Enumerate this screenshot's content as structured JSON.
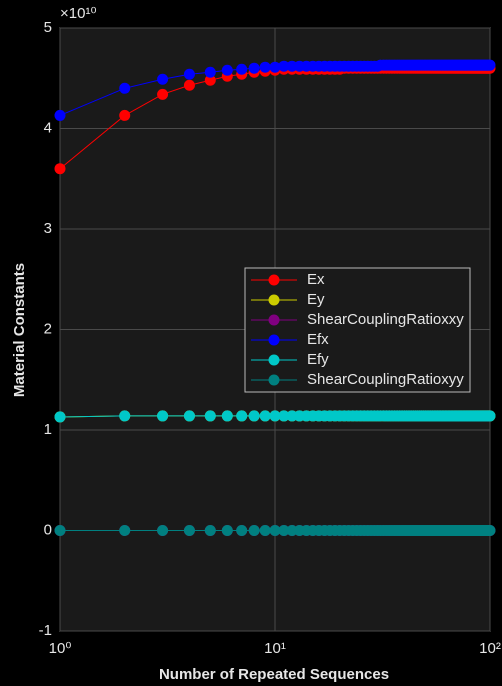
{
  "chart_data": {
    "type": "line",
    "xlabel": "Number of Repeated Sequences",
    "ylabel": "Material Constants",
    "y_exponent_label": "×10¹⁰",
    "x_scale": "log",
    "grid": true,
    "legend_position": "center-right",
    "xlim": [
      1,
      100
    ],
    "xticks": [
      {
        "value": 1,
        "label": "10⁰"
      },
      {
        "value": 10,
        "label": "10¹"
      },
      {
        "value": 100,
        "label": "10²"
      }
    ],
    "ylim": [
      -1,
      5
    ],
    "yticks": [
      -1,
      0,
      1,
      2,
      3,
      4,
      5
    ],
    "x": [
      1,
      2,
      3,
      4,
      5,
      6,
      7,
      8,
      9,
      10,
      11,
      12,
      13,
      14,
      15,
      16,
      17,
      18,
      19,
      20,
      21,
      22,
      23,
      24,
      25,
      26,
      27,
      28,
      29,
      30,
      31,
      32,
      33,
      34,
      35,
      36,
      37,
      38,
      39,
      40,
      41,
      42,
      43,
      44,
      45,
      46,
      47,
      48,
      49,
      50,
      51,
      52,
      53,
      54,
      55,
      56,
      57,
      58,
      59,
      60,
      61,
      62,
      63,
      64,
      65,
      66,
      67,
      68,
      69,
      70,
      71,
      72,
      73,
      74,
      75,
      76,
      77,
      78,
      79,
      80,
      81,
      82,
      83,
      84,
      85,
      86,
      87,
      88,
      89,
      90,
      91,
      92,
      93,
      94,
      95,
      96,
      97,
      98,
      99,
      100
    ],
    "series": [
      {
        "name": "Ex",
        "color": "#ff0000",
        "values": [
          3.6,
          4.13,
          4.34,
          4.43,
          4.48,
          4.52,
          4.54,
          4.56,
          4.57,
          4.58,
          4.59,
          4.59,
          4.59,
          4.59,
          4.59,
          4.59,
          4.59,
          4.59,
          4.59,
          4.59,
          4.6,
          4.6,
          4.6,
          4.6,
          4.6,
          4.6,
          4.6,
          4.6,
          4.6,
          4.6,
          4.6,
          4.6,
          4.6,
          4.6,
          4.6,
          4.6,
          4.6,
          4.6,
          4.6,
          4.6,
          4.6,
          4.6,
          4.6,
          4.6,
          4.6,
          4.6,
          4.6,
          4.6,
          4.6,
          4.6,
          4.6,
          4.6,
          4.6,
          4.6,
          4.6,
          4.6,
          4.6,
          4.6,
          4.6,
          4.6,
          4.6,
          4.6,
          4.6,
          4.6,
          4.6,
          4.6,
          4.6,
          4.6,
          4.6,
          4.6,
          4.6,
          4.6,
          4.6,
          4.6,
          4.6,
          4.6,
          4.6,
          4.6,
          4.6,
          4.6,
          4.6,
          4.6,
          4.6,
          4.6,
          4.6,
          4.6,
          4.6,
          4.6,
          4.6,
          4.6,
          4.6,
          4.6,
          4.6,
          4.6,
          4.6,
          4.6,
          4.6,
          4.6,
          4.6,
          4.6
        ]
      },
      {
        "name": "Ey",
        "color": "#cccc00",
        "values": [
          1.13,
          1.14,
          1.14,
          1.14,
          1.14,
          1.14,
          1.14,
          1.14,
          1.14,
          1.14,
          1.14,
          1.14,
          1.14,
          1.14,
          1.14,
          1.14,
          1.14,
          1.14,
          1.14,
          1.14,
          1.14,
          1.14,
          1.14,
          1.14,
          1.14,
          1.14,
          1.14,
          1.14,
          1.14,
          1.14,
          1.14,
          1.14,
          1.14,
          1.14,
          1.14,
          1.14,
          1.14,
          1.14,
          1.14,
          1.14,
          1.14,
          1.14,
          1.14,
          1.14,
          1.14,
          1.14,
          1.14,
          1.14,
          1.14,
          1.14,
          1.14,
          1.14,
          1.14,
          1.14,
          1.14,
          1.14,
          1.14,
          1.14,
          1.14,
          1.14,
          1.14,
          1.14,
          1.14,
          1.14,
          1.14,
          1.14,
          1.14,
          1.14,
          1.14,
          1.14,
          1.14,
          1.14,
          1.14,
          1.14,
          1.14,
          1.14,
          1.14,
          1.14,
          1.14,
          1.14,
          1.14,
          1.14,
          1.14,
          1.14,
          1.14,
          1.14,
          1.14,
          1.14,
          1.14,
          1.14,
          1.14,
          1.14,
          1.14,
          1.14,
          1.14,
          1.14,
          1.14,
          1.14,
          1.14,
          1.14
        ]
      },
      {
        "name": "ShearCouplingRatioxxy",
        "color": "#800080",
        "values": [
          0,
          0,
          0,
          0,
          0,
          0,
          0,
          0,
          0,
          0,
          0,
          0,
          0,
          0,
          0,
          0,
          0,
          0,
          0,
          0,
          0,
          0,
          0,
          0,
          0,
          0,
          0,
          0,
          0,
          0,
          0,
          0,
          0,
          0,
          0,
          0,
          0,
          0,
          0,
          0,
          0,
          0,
          0,
          0,
          0,
          0,
          0,
          0,
          0,
          0,
          0,
          0,
          0,
          0,
          0,
          0,
          0,
          0,
          0,
          0,
          0,
          0,
          0,
          0,
          0,
          0,
          0,
          0,
          0,
          0,
          0,
          0,
          0,
          0,
          0,
          0,
          0,
          0,
          0,
          0,
          0,
          0,
          0,
          0,
          0,
          0,
          0,
          0,
          0,
          0,
          0,
          0,
          0,
          0,
          0,
          0,
          0,
          0,
          0,
          0
        ]
      },
      {
        "name": "Efx",
        "color": "#0000ff",
        "values": [
          4.13,
          4.4,
          4.49,
          4.54,
          4.56,
          4.58,
          4.59,
          4.6,
          4.61,
          4.61,
          4.62,
          4.62,
          4.62,
          4.62,
          4.62,
          4.62,
          4.62,
          4.62,
          4.62,
          4.62,
          4.62,
          4.62,
          4.62,
          4.62,
          4.62,
          4.62,
          4.62,
          4.62,
          4.62,
          4.62,
          4.63,
          4.63,
          4.63,
          4.63,
          4.63,
          4.63,
          4.63,
          4.63,
          4.63,
          4.63,
          4.63,
          4.63,
          4.63,
          4.63,
          4.63,
          4.63,
          4.63,
          4.63,
          4.63,
          4.63,
          4.63,
          4.63,
          4.63,
          4.63,
          4.63,
          4.63,
          4.63,
          4.63,
          4.63,
          4.63,
          4.63,
          4.63,
          4.63,
          4.63,
          4.63,
          4.63,
          4.63,
          4.63,
          4.63,
          4.63,
          4.63,
          4.63,
          4.63,
          4.63,
          4.63,
          4.63,
          4.63,
          4.63,
          4.63,
          4.63,
          4.63,
          4.63,
          4.63,
          4.63,
          4.63,
          4.63,
          4.63,
          4.63,
          4.63,
          4.63,
          4.63,
          4.63,
          4.63,
          4.63,
          4.63,
          4.63,
          4.63,
          4.63,
          4.63,
          4.63
        ]
      },
      {
        "name": "Efy",
        "color": "#00c8c8",
        "values": [
          1.13,
          1.14,
          1.14,
          1.14,
          1.14,
          1.14,
          1.14,
          1.14,
          1.14,
          1.14,
          1.14,
          1.14,
          1.14,
          1.14,
          1.14,
          1.14,
          1.14,
          1.14,
          1.14,
          1.14,
          1.14,
          1.14,
          1.14,
          1.14,
          1.14,
          1.14,
          1.14,
          1.14,
          1.14,
          1.14,
          1.14,
          1.14,
          1.14,
          1.14,
          1.14,
          1.14,
          1.14,
          1.14,
          1.14,
          1.14,
          1.14,
          1.14,
          1.14,
          1.14,
          1.14,
          1.14,
          1.14,
          1.14,
          1.14,
          1.14,
          1.14,
          1.14,
          1.14,
          1.14,
          1.14,
          1.14,
          1.14,
          1.14,
          1.14,
          1.14,
          1.14,
          1.14,
          1.14,
          1.14,
          1.14,
          1.14,
          1.14,
          1.14,
          1.14,
          1.14,
          1.14,
          1.14,
          1.14,
          1.14,
          1.14,
          1.14,
          1.14,
          1.14,
          1.14,
          1.14,
          1.14,
          1.14,
          1.14,
          1.14,
          1.14,
          1.14,
          1.14,
          1.14,
          1.14,
          1.14,
          1.14,
          1.14,
          1.14,
          1.14,
          1.14,
          1.14,
          1.14,
          1.14,
          1.14,
          1.14
        ]
      },
      {
        "name": "ShearCouplingRatioxyy",
        "color": "#008080",
        "values": [
          0,
          0,
          0,
          0,
          0,
          0,
          0,
          0,
          0,
          0,
          0,
          0,
          0,
          0,
          0,
          0,
          0,
          0,
          0,
          0,
          0,
          0,
          0,
          0,
          0,
          0,
          0,
          0,
          0,
          0,
          0,
          0,
          0,
          0,
          0,
          0,
          0,
          0,
          0,
          0,
          0,
          0,
          0,
          0,
          0,
          0,
          0,
          0,
          0,
          0,
          0,
          0,
          0,
          0,
          0,
          0,
          0,
          0,
          0,
          0,
          0,
          0,
          0,
          0,
          0,
          0,
          0,
          0,
          0,
          0,
          0,
          0,
          0,
          0,
          0,
          0,
          0,
          0,
          0,
          0,
          0,
          0,
          0,
          0,
          0,
          0,
          0,
          0,
          0,
          0,
          0,
          0,
          0,
          0,
          0,
          0,
          0,
          0,
          0,
          0
        ]
      }
    ]
  }
}
